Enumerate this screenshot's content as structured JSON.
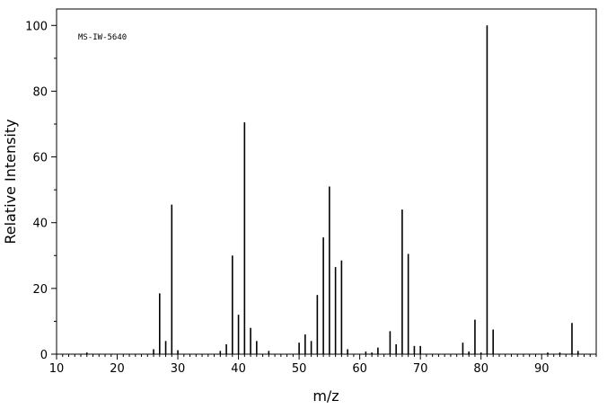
{
  "chart_data": {
    "type": "bar",
    "title": "",
    "annotation": "MS-IW-5640",
    "xlabel": "m/z",
    "ylabel": "Relative Intensity",
    "xlim": [
      10,
      99
    ],
    "ylim": [
      0,
      105
    ],
    "x_ticks": [
      10,
      20,
      30,
      40,
      50,
      60,
      70,
      80,
      90
    ],
    "y_ticks": [
      0,
      20,
      40,
      60,
      80,
      100
    ],
    "grid": false,
    "legend": "none",
    "series": [
      {
        "x": [
          15,
          26,
          27,
          28,
          29,
          30,
          37,
          38,
          39,
          40,
          41,
          42,
          43,
          45,
          50,
          51,
          52,
          53,
          54,
          55,
          56,
          57,
          58,
          61,
          62,
          63,
          65,
          66,
          67,
          68,
          69,
          70,
          77,
          78,
          79,
          80,
          81,
          82,
          91,
          93,
          95,
          96
        ],
        "values": [
          0.5,
          1.5,
          18.5,
          4,
          45.5,
          1.2,
          1,
          3,
          30,
          12,
          70.5,
          8,
          4,
          1,
          3.5,
          6,
          4,
          18,
          35.5,
          51,
          26.5,
          28.5,
          1.5,
          0.8,
          0.5,
          2,
          7,
          3,
          44,
          30.5,
          2.5,
          2.5,
          3.5,
          0.8,
          10.5,
          0.5,
          100,
          7.5,
          0.5,
          0.5,
          9.5,
          1
        ]
      }
    ]
  }
}
